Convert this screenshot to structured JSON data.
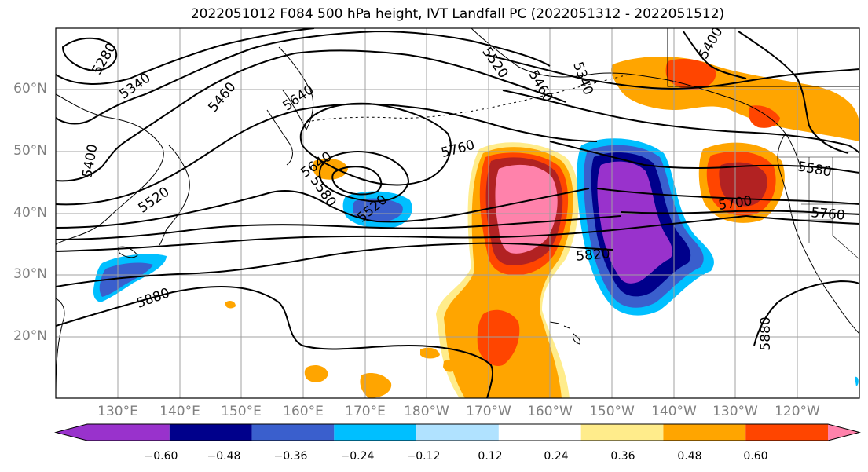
{
  "title": "2022051012 F084 500 hPa height, IVT Landfall PC (2022051312 - 2022051512)",
  "lat_labels": [
    "60°N",
    "50°N",
    "40°N",
    "30°N",
    "20°N"
  ],
  "lon_labels": [
    "130°E",
    "140°E",
    "150°E",
    "160°E",
    "170°E",
    "180°W",
    "170°W",
    "160°W",
    "150°W",
    "140°W",
    "130°W",
    "120°W"
  ],
  "contour_labels": [
    "5280",
    "5340",
    "5400",
    "5460",
    "5520",
    "5580",
    "5640",
    "5700",
    "5760",
    "5820",
    "5880"
  ],
  "colorbar": {
    "ticks": [
      "−0.60",
      "−0.48",
      "−0.36",
      "−0.24",
      "−0.12",
      "0.12",
      "0.24",
      "0.36",
      "0.48",
      "0.60"
    ],
    "colors": [
      "#9932cc",
      "#00008b",
      "#3a5fcd",
      "#00bfff",
      "#b0e2ff",
      "#ffffff",
      "#ffec8b",
      "#ffa500",
      "#ff4500",
      "#b22222",
      "#ff82ab"
    ]
  }
}
